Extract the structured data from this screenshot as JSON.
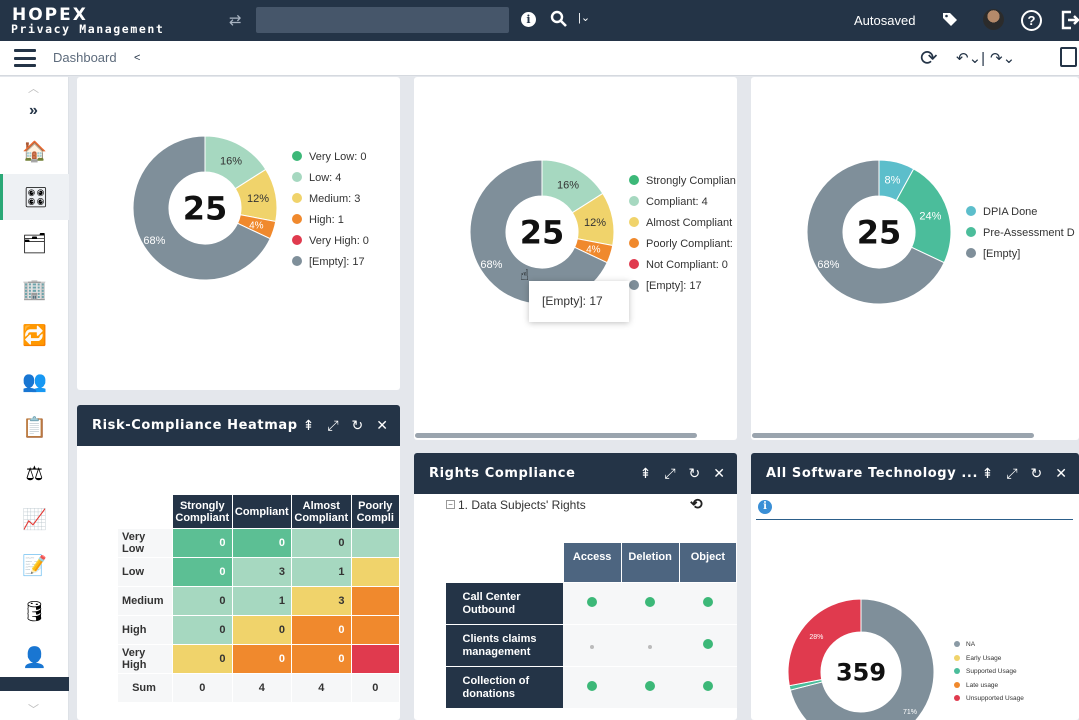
{
  "app": {
    "logo_line1": "HOPEX",
    "logo_line2": "Privacy Management",
    "status": "Autosaved"
  },
  "breadcrumb": {
    "label": "Dashboard"
  },
  "donut1": {
    "center": "25",
    "pct": [
      "16%",
      "12%",
      "4%",
      "68%"
    ],
    "legend": [
      "Very Low: 0",
      "Low: 4",
      "Medium: 3",
      "High: 1",
      "Very High: 0",
      "[Empty]: 17"
    ]
  },
  "donut2": {
    "center": "25",
    "pct": [
      "16%",
      "12%",
      "4%",
      "68%"
    ],
    "legend": [
      "Strongly Complian",
      "Compliant: 4",
      "Almost Compliant",
      "Poorly Compliant:",
      "Not Compliant: 0",
      "[Empty]: 17"
    ],
    "tooltip": "[Empty]: 17"
  },
  "donut3": {
    "center": "25",
    "pct": [
      "8%",
      "24%",
      "68%"
    ],
    "legend": [
      "DPIA Done",
      "Pre-Assessment D",
      "[Empty]"
    ]
  },
  "heatmap": {
    "title": "Risk-Compliance Heatmap",
    "cols": [
      "Strongly Compliant",
      "Compliant",
      "Almost Compliant",
      "Poorly Compli"
    ],
    "rows": [
      {
        "label": "Very Low",
        "v": [
          "0",
          "0",
          "0",
          ""
        ]
      },
      {
        "label": "Low",
        "v": [
          "0",
          "3",
          "1",
          ""
        ]
      },
      {
        "label": "Medium",
        "v": [
          "0",
          "1",
          "3",
          ""
        ]
      },
      {
        "label": "High",
        "v": [
          "0",
          "0",
          "0",
          ""
        ]
      },
      {
        "label": "Very High",
        "v": [
          "0",
          "0",
          "0",
          ""
        ]
      },
      {
        "label": "Sum",
        "v": [
          "0",
          "4",
          "4",
          "0"
        ]
      }
    ]
  },
  "rights": {
    "title": "Rights Compliance",
    "tree": "1. Data Subjects' Rights",
    "cols": [
      "Access",
      "Deletion",
      "Object"
    ],
    "rows": [
      "Call Center Outbound",
      "Clients claims management",
      "Collection of donations"
    ]
  },
  "software": {
    "title": "All Software Technology ...",
    "center": "359",
    "pct_red": "28%",
    "pct_gray": "71%",
    "legend": [
      "NA",
      "Early Usage",
      "Supported Usage",
      "Late usage",
      "Unsupported Usage"
    ]
  },
  "colors": {
    "navy": "#243447",
    "green": "#3cb878",
    "lightgreen": "#a6d8c0",
    "yellow": "#f0d36b",
    "orange": "#f0892d",
    "red": "#e03a4e",
    "gray": "#7f8f9a",
    "teal": "#5cbecb"
  }
}
